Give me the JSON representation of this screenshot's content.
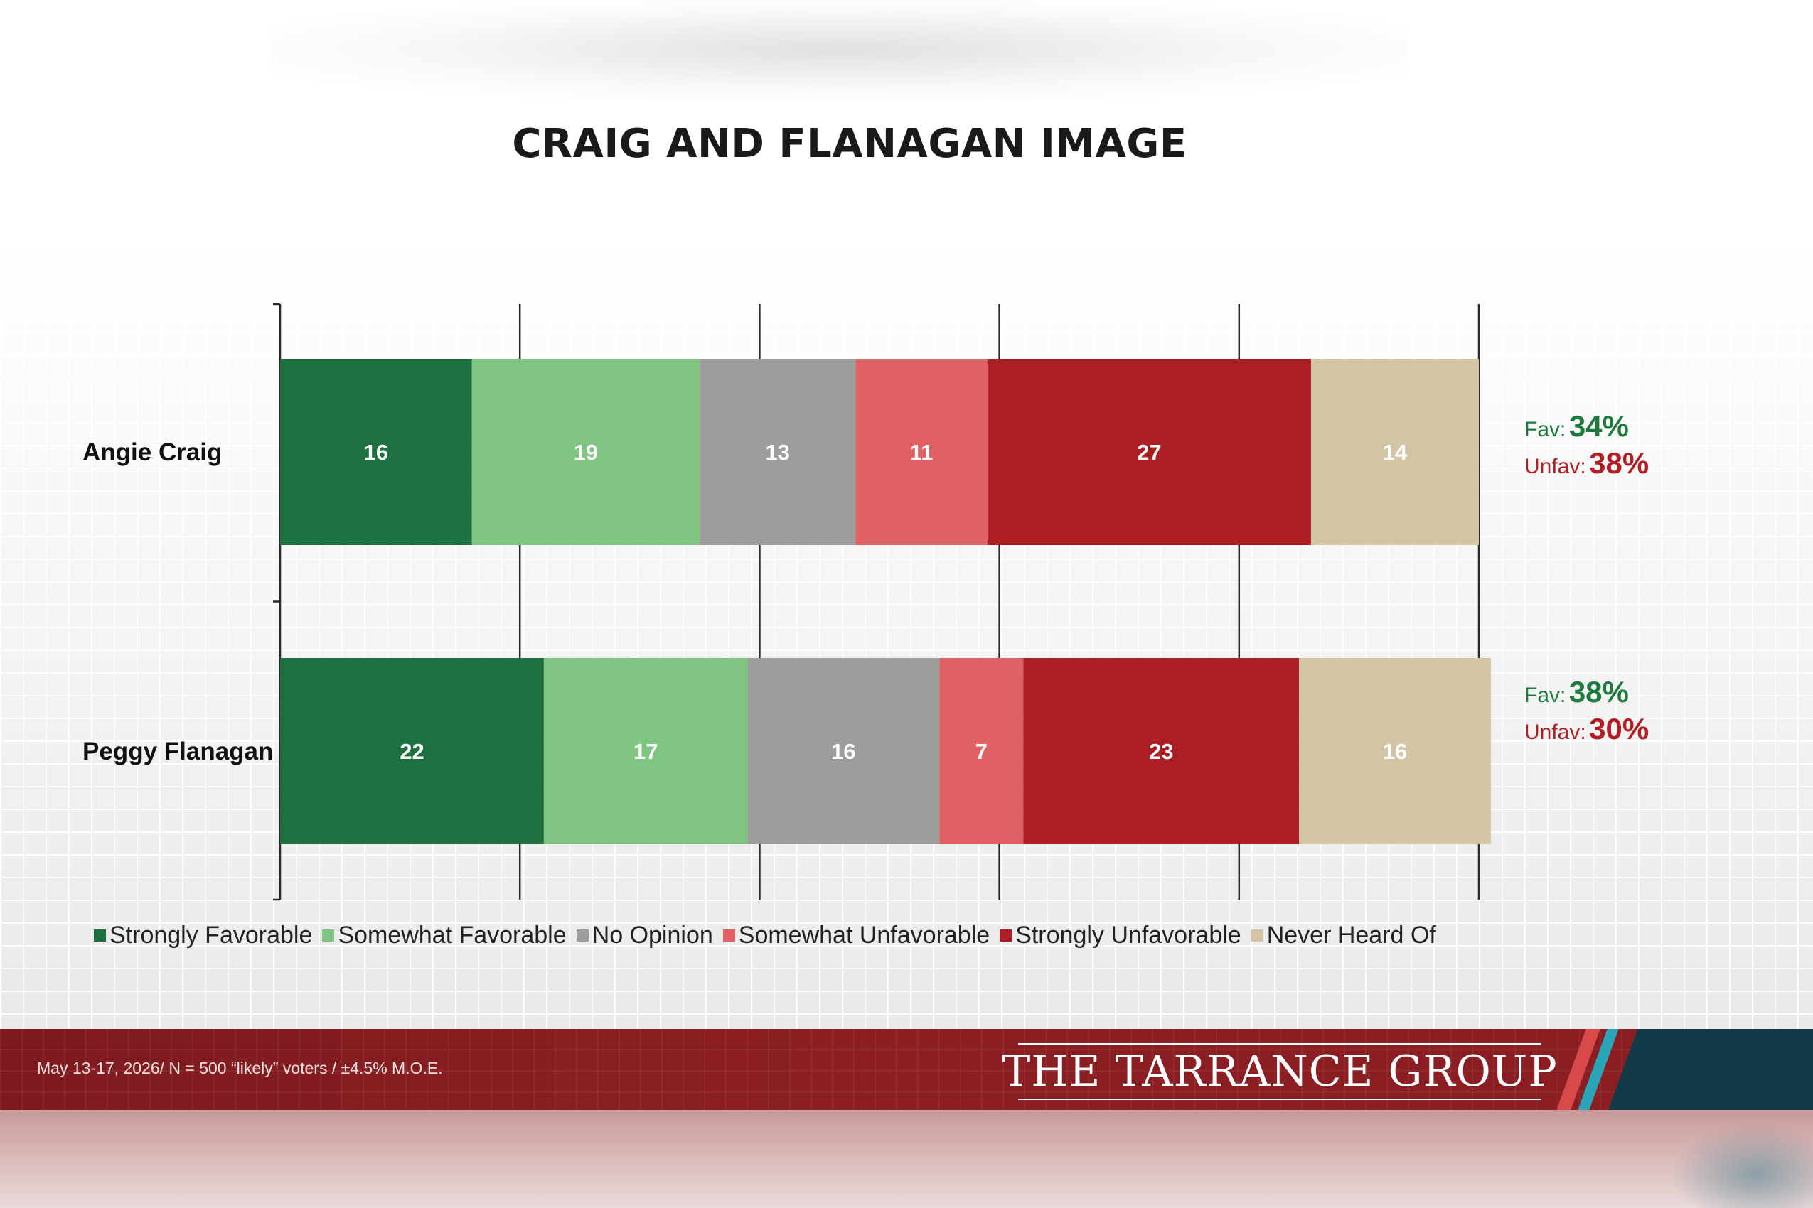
{
  "title": "CRAIG AND FLANAGAN IMAGE",
  "colors": {
    "strongly_favorable": "#1e7040",
    "somewhat_favorable": "#7fc581",
    "no_opinion": "#9d9d9d",
    "somewhat_unfavorable": "#e06163",
    "strongly_unfavorable": "#ab1e23",
    "never_heard_of": "#d3c4a5",
    "fav_text": "#1f7a3f",
    "unfav_text": "#b31d24",
    "footer": "#8b1f23"
  },
  "chart_data": {
    "type": "bar",
    "orientation": "horizontal",
    "stacked": true,
    "title": "CRAIG AND FLANAGAN IMAGE",
    "categories": [
      "Angie Craig",
      "Peggy Flanagan"
    ],
    "series": [
      {
        "name": "Strongly Favorable",
        "values": [
          16,
          22
        ]
      },
      {
        "name": "Somewhat Favorable",
        "values": [
          19,
          17
        ]
      },
      {
        "name": "No Opinion",
        "values": [
          13,
          16
        ]
      },
      {
        "name": "Somewhat Unfavorable",
        "values": [
          11,
          7
        ]
      },
      {
        "name": "Strongly Unfavorable",
        "values": [
          27,
          23
        ]
      },
      {
        "name": "Never Heard Of",
        "values": [
          14,
          16
        ]
      }
    ],
    "xlim": [
      0,
      100
    ],
    "grid": true,
    "legend": "bottom"
  },
  "summary": [
    {
      "fav_label": "Fav:",
      "fav_value": "34%",
      "unfav_label": "Unfav:",
      "unfav_value": "38%"
    },
    {
      "fav_label": "Fav:",
      "fav_value": "38%",
      "unfav_label": "Unfav:",
      "unfav_value": "30%"
    }
  ],
  "footer": {
    "note": "May 13-17, 2026/ N = 500 “likely” voters / ±4.5% M.O.E.",
    "brand": "THE TARRANCE GROUP"
  }
}
